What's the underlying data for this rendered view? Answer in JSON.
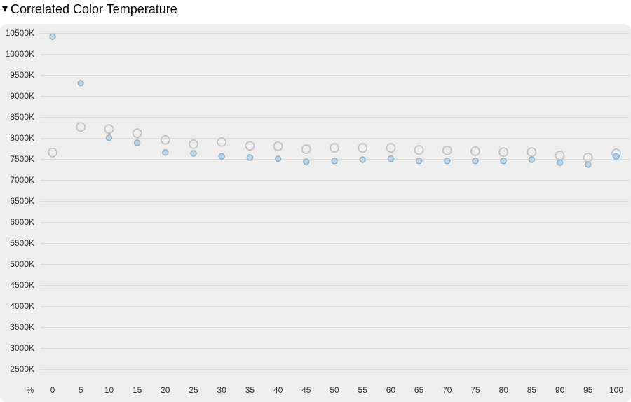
{
  "chart_data": {
    "type": "scatter",
    "title": "Correlated Color Temperature",
    "x_label": "%",
    "x": [
      0,
      5,
      10,
      15,
      20,
      25,
      30,
      35,
      40,
      45,
      50,
      55,
      60,
      65,
      70,
      75,
      80,
      85,
      90,
      95,
      100
    ],
    "xlim": [
      0,
      100
    ],
    "series": [
      {
        "color": "#c4c4c4",
        "marker": "open",
        "values": [
          7670,
          8280,
          8230,
          8130,
          7970,
          7870,
          7920,
          7830,
          7820,
          7750,
          7780,
          7780,
          7780,
          7730,
          7720,
          7700,
          7680,
          7680,
          7600,
          7550,
          7650
        ]
      },
      {
        "color": "#8fb4cc",
        "marker": "filled",
        "values": [
          10430,
          9320,
          8020,
          7900,
          7670,
          7650,
          7580,
          7550,
          7520,
          7450,
          7470,
          7500,
          7520,
          7470,
          7470,
          7470,
          7470,
          7500,
          7430,
          7380,
          7580
        ]
      }
    ],
    "ylim": [
      2500,
      10500
    ],
    "yticks": [
      {
        "value": 2500,
        "label": "2500K"
      },
      {
        "value": 3000,
        "label": "3000K"
      },
      {
        "value": 3500,
        "label": "3500K"
      },
      {
        "value": 4000,
        "label": "4000K"
      },
      {
        "value": 4500,
        "label": "4500K"
      },
      {
        "value": 5000,
        "label": "5000K"
      },
      {
        "value": 5500,
        "label": "5500K"
      },
      {
        "value": 6000,
        "label": "6000K"
      },
      {
        "value": 6500,
        "label": "6500K"
      },
      {
        "value": 7000,
        "label": "7000K"
      },
      {
        "value": 7500,
        "label": "7500K"
      },
      {
        "value": 8000,
        "label": "8000K"
      },
      {
        "value": 8500,
        "label": "8500K"
      },
      {
        "value": 9000,
        "label": "9000K"
      },
      {
        "value": 9500,
        "label": "9500K"
      },
      {
        "value": 10000,
        "label": "10000K"
      },
      {
        "value": 10500,
        "label": "10500K"
      }
    ],
    "grid": true
  }
}
